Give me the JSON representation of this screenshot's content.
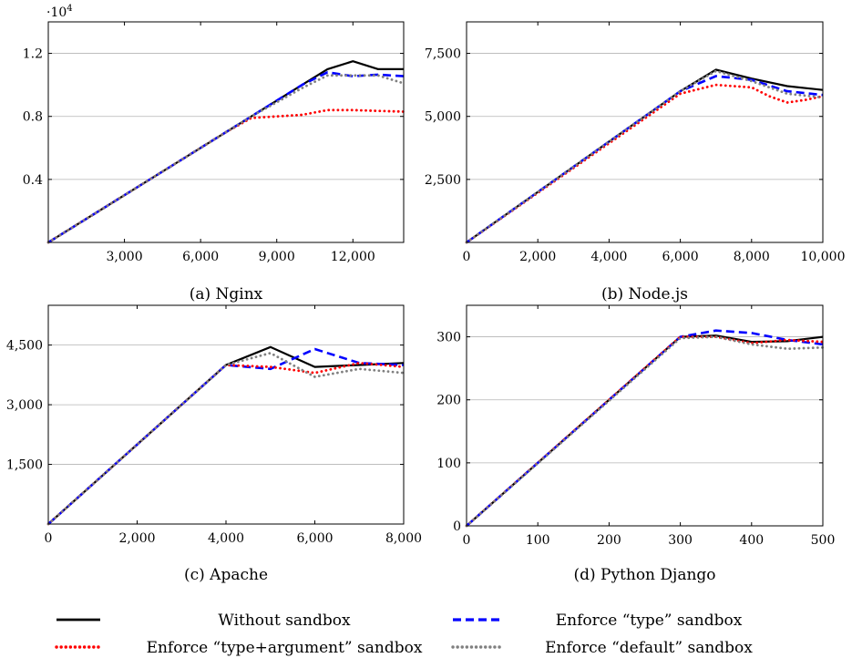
{
  "legend": {
    "items": [
      {
        "label": "Without sandbox",
        "series": "without"
      },
      {
        "label": "Enforce “type” sandbox",
        "series": "type"
      },
      {
        "label": "Enforce “type+argument” sandbox",
        "series": "typearg"
      },
      {
        "label": "Enforce “default” sandbox",
        "series": "default"
      }
    ]
  },
  "styles": {
    "without": {
      "color": "#000000",
      "dash": "solid"
    },
    "type": {
      "color": "#0000ff",
      "dash": "dashed"
    },
    "typearg": {
      "color": "#ff0000",
      "dash": "dotted"
    },
    "default": {
      "color": "#808080",
      "dash": "dotted"
    }
  },
  "chart_data": [
    {
      "type": "line",
      "caption": "(a) Nginx",
      "scale_label": "·10",
      "scale_exp": "4",
      "xlim": [
        0,
        14000
      ],
      "ylim": [
        0,
        14000
      ],
      "xticks": [
        3000,
        6000,
        9000,
        12000
      ],
      "xtick_labels": [
        "3,000",
        "6,000",
        "9,000",
        "12,000"
      ],
      "yticks": [
        4000,
        8000,
        12000
      ],
      "ytick_labels": [
        "0.4",
        "0.8",
        "1.2"
      ],
      "grid": "horizontal",
      "series": [
        {
          "key": "without",
          "x": [
            0,
            7000,
            8000,
            9000,
            10000,
            11000,
            12000,
            13000,
            14000
          ],
          "y": [
            0,
            7000,
            8000,
            9000,
            10000,
            11000,
            11500,
            11000,
            11000
          ]
        },
        {
          "key": "type",
          "x": [
            0,
            7000,
            8000,
            9000,
            10000,
            11000,
            12000,
            13000,
            14000
          ],
          "y": [
            0,
            7000,
            8000,
            9000,
            10000,
            10800,
            10550,
            10650,
            10550
          ]
        },
        {
          "key": "typearg",
          "x": [
            0,
            7000,
            8000,
            9000,
            10000,
            11000,
            12000,
            13000,
            14000
          ],
          "y": [
            0,
            7000,
            7900,
            8000,
            8100,
            8400,
            8400,
            8350,
            8300
          ]
        },
        {
          "key": "default",
          "x": [
            0,
            7000,
            8000,
            9000,
            10000,
            11000,
            12000,
            13000,
            14000
          ],
          "y": [
            0,
            7000,
            8000,
            8900,
            9800,
            10600,
            10600,
            10600,
            10100
          ]
        }
      ]
    },
    {
      "type": "line",
      "caption": "(b) Node.js",
      "xlim": [
        0,
        10000
      ],
      "ylim": [
        0,
        8750
      ],
      "xticks": [
        0,
        2000,
        4000,
        6000,
        8000,
        10000
      ],
      "xtick_labels": [
        "0",
        "2,000",
        "4,000",
        "6,000",
        "8,000",
        "10,000"
      ],
      "yticks": [
        2500,
        5000,
        7500
      ],
      "ytick_labels": [
        "2,500",
        "5,000",
        "7,500"
      ],
      "grid": "horizontal",
      "series": [
        {
          "key": "without",
          "x": [
            0,
            6000,
            7000,
            8000,
            9000,
            10000
          ],
          "y": [
            0,
            6000,
            6850,
            6500,
            6200,
            6050
          ]
        },
        {
          "key": "type",
          "x": [
            0,
            6000,
            7000,
            8000,
            9000,
            10000
          ],
          "y": [
            0,
            6000,
            6600,
            6450,
            6000,
            5850
          ]
        },
        {
          "key": "typearg",
          "x": [
            0,
            6000,
            7000,
            8000,
            8500,
            9000,
            9500,
            10000
          ],
          "y": [
            0,
            5900,
            6250,
            6150,
            5800,
            5550,
            5650,
            5800
          ]
        },
        {
          "key": "default",
          "x": [
            0,
            6000,
            7000,
            8000,
            9000,
            10000
          ],
          "y": [
            0,
            6000,
            6800,
            6400,
            5900,
            5750
          ]
        }
      ]
    },
    {
      "type": "line",
      "caption": "(c) Apache",
      "xlim": [
        0,
        8000
      ],
      "ylim": [
        0,
        5500
      ],
      "xticks": [
        0,
        2000,
        4000,
        6000,
        8000
      ],
      "xtick_labels": [
        "0",
        "2,000",
        "4,000",
        "6,000",
        "8,000"
      ],
      "yticks": [
        1500,
        3000,
        4500
      ],
      "ytick_labels": [
        "1,500",
        "3,000",
        "4,500"
      ],
      "grid": "horizontal",
      "series": [
        {
          "key": "without",
          "x": [
            0,
            4000,
            5000,
            6000,
            7000,
            8000
          ],
          "y": [
            0,
            4000,
            4450,
            3950,
            4000,
            4050
          ]
        },
        {
          "key": "type",
          "x": [
            0,
            4000,
            5000,
            6000,
            7000,
            8000
          ],
          "y": [
            0,
            4000,
            3900,
            4400,
            4050,
            4000
          ]
        },
        {
          "key": "typearg",
          "x": [
            0,
            4000,
            5000,
            6000,
            7000,
            8000
          ],
          "y": [
            0,
            4000,
            3950,
            3800,
            4050,
            3950
          ]
        },
        {
          "key": "default",
          "x": [
            0,
            4000,
            5000,
            6000,
            7000,
            8000
          ],
          "y": [
            0,
            4000,
            4300,
            3700,
            3900,
            3800
          ]
        }
      ]
    },
    {
      "type": "line",
      "caption": "(d) Python Django",
      "xlim": [
        0,
        500
      ],
      "ylim": [
        0,
        350
      ],
      "xticks": [
        0,
        100,
        200,
        300,
        400,
        500
      ],
      "xtick_labels": [
        "0",
        "100",
        "200",
        "300",
        "400",
        "500"
      ],
      "yticks": [
        0,
        100,
        200,
        300
      ],
      "ytick_labels": [
        "0",
        "100",
        "200",
        "300"
      ],
      "grid": "horizontal",
      "series": [
        {
          "key": "without",
          "x": [
            0,
            300,
            350,
            400,
            450,
            500
          ],
          "y": [
            0,
            300,
            302,
            292,
            293,
            300
          ]
        },
        {
          "key": "type",
          "x": [
            0,
            300,
            350,
            400,
            450,
            500
          ],
          "y": [
            0,
            300,
            310,
            306,
            295,
            288
          ]
        },
        {
          "key": "typearg",
          "x": [
            0,
            300,
            350,
            400,
            450,
            500
          ],
          "y": [
            0,
            300,
            300,
            290,
            295,
            292
          ]
        },
        {
          "key": "default",
          "x": [
            0,
            300,
            350,
            400,
            450,
            500
          ],
          "y": [
            0,
            298,
            300,
            288,
            281,
            283
          ]
        }
      ]
    }
  ]
}
